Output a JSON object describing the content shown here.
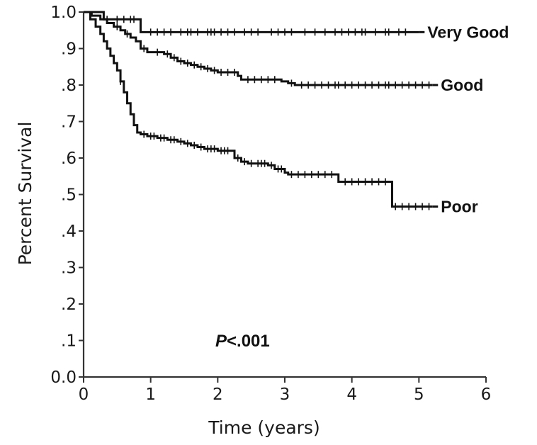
{
  "chart_data": {
    "type": "line",
    "title": "",
    "xlabel": "Time (years)",
    "ylabel": "Percent Survival",
    "xlim": [
      0,
      6
    ],
    "ylim": [
      0,
      1
    ],
    "x_ticks": [
      {
        "value": 0,
        "label": "0"
      },
      {
        "value": 1,
        "label": "1"
      },
      {
        "value": 2,
        "label": "2"
      },
      {
        "value": 3,
        "label": "3"
      },
      {
        "value": 4,
        "label": "4"
      },
      {
        "value": 5,
        "label": "5"
      },
      {
        "value": 6,
        "label": "6"
      }
    ],
    "y_ticks": [
      {
        "value": 0.0,
        "label": "0.0"
      },
      {
        "value": 0.1,
        "label": ".1"
      },
      {
        "value": 0.2,
        "label": ".2"
      },
      {
        "value": 0.3,
        "label": ".3"
      },
      {
        "value": 0.4,
        "label": ".4"
      },
      {
        "value": 0.5,
        "label": ".5"
      },
      {
        "value": 0.6,
        "label": ".6"
      },
      {
        "value": 0.7,
        "label": ".7"
      },
      {
        "value": 0.8,
        "label": ".8"
      },
      {
        "value": 0.9,
        "label": ".9"
      },
      {
        "value": 1.0,
        "label": "1.0"
      }
    ],
    "grid": false,
    "line_color": "#111111",
    "annotation": {
      "italic": "P",
      "text": "<.001"
    },
    "series": [
      {
        "name": "Very Good",
        "steps": [
          [
            0,
            1.0
          ],
          [
            0.3,
            0.98
          ],
          [
            0.85,
            0.945
          ],
          [
            5.0,
            0.945
          ]
        ],
        "censor_times": [
          0.35,
          0.5,
          0.6,
          0.7,
          0.75,
          1.0,
          1.1,
          1.2,
          1.3,
          1.45,
          1.55,
          1.6,
          1.7,
          1.85,
          1.9,
          1.95,
          2.05,
          2.15,
          2.25,
          2.4,
          2.5,
          2.6,
          2.8,
          2.9,
          3.0,
          3.1,
          3.3,
          3.45,
          3.6,
          3.75,
          3.85,
          3.95,
          4.05,
          4.15,
          4.2,
          4.35,
          4.5,
          4.55,
          4.7,
          4.8
        ]
      },
      {
        "name": "Good",
        "steps": [
          [
            0,
            1.0
          ],
          [
            0.12,
            0.99
          ],
          [
            0.25,
            0.98
          ],
          [
            0.35,
            0.97
          ],
          [
            0.45,
            0.96
          ],
          [
            0.55,
            0.95
          ],
          [
            0.62,
            0.94
          ],
          [
            0.7,
            0.93
          ],
          [
            0.78,
            0.92
          ],
          [
            0.85,
            0.9
          ],
          [
            0.95,
            0.89
          ],
          [
            1.2,
            0.885
          ],
          [
            1.3,
            0.875
          ],
          [
            1.4,
            0.865
          ],
          [
            1.5,
            0.86
          ],
          [
            1.6,
            0.855
          ],
          [
            1.7,
            0.85
          ],
          [
            1.8,
            0.845
          ],
          [
            1.9,
            0.84
          ],
          [
            2.0,
            0.835
          ],
          [
            2.3,
            0.825
          ],
          [
            2.35,
            0.815
          ],
          [
            2.95,
            0.81
          ],
          [
            3.05,
            0.805
          ],
          [
            3.15,
            0.8
          ],
          [
            5.2,
            0.8
          ]
        ],
        "censor_times": [
          0.5,
          0.65,
          0.9,
          1.1,
          1.25,
          1.35,
          1.45,
          1.55,
          1.65,
          1.75,
          1.85,
          1.95,
          2.05,
          2.15,
          2.25,
          2.45,
          2.55,
          2.65,
          2.75,
          2.85,
          3.1,
          3.25,
          3.35,
          3.45,
          3.55,
          3.65,
          3.75,
          3.8,
          3.9,
          4.0,
          4.1,
          4.2,
          4.3,
          4.4,
          4.5,
          4.55,
          4.65,
          4.75,
          4.85,
          4.95,
          5.05,
          5.15
        ]
      },
      {
        "name": "Poor",
        "steps": [
          [
            0,
            1.0
          ],
          [
            0.1,
            0.98
          ],
          [
            0.18,
            0.96
          ],
          [
            0.25,
            0.94
          ],
          [
            0.3,
            0.92
          ],
          [
            0.35,
            0.9
          ],
          [
            0.4,
            0.88
          ],
          [
            0.45,
            0.86
          ],
          [
            0.5,
            0.84
          ],
          [
            0.55,
            0.81
          ],
          [
            0.6,
            0.78
          ],
          [
            0.65,
            0.75
          ],
          [
            0.7,
            0.72
          ],
          [
            0.75,
            0.69
          ],
          [
            0.8,
            0.67
          ],
          [
            0.85,
            0.665
          ],
          [
            0.95,
            0.66
          ],
          [
            1.1,
            0.655
          ],
          [
            1.25,
            0.65
          ],
          [
            1.4,
            0.645
          ],
          [
            1.5,
            0.64
          ],
          [
            1.6,
            0.635
          ],
          [
            1.7,
            0.63
          ],
          [
            1.8,
            0.625
          ],
          [
            2.0,
            0.62
          ],
          [
            2.25,
            0.6
          ],
          [
            2.35,
            0.59
          ],
          [
            2.45,
            0.585
          ],
          [
            2.75,
            0.58
          ],
          [
            2.85,
            0.57
          ],
          [
            3.0,
            0.56
          ],
          [
            3.05,
            0.555
          ],
          [
            3.8,
            0.535
          ],
          [
            4.6,
            0.467
          ],
          [
            5.2,
            0.467
          ]
        ],
        "censor_times": [
          0.55,
          0.9,
          1.0,
          1.05,
          1.15,
          1.2,
          1.3,
          1.35,
          1.45,
          1.55,
          1.65,
          1.75,
          1.85,
          1.9,
          1.95,
          2.05,
          2.1,
          2.15,
          2.3,
          2.4,
          2.5,
          2.6,
          2.65,
          2.7,
          2.8,
          2.9,
          2.95,
          3.1,
          3.2,
          3.3,
          3.4,
          3.5,
          3.6,
          3.7,
          3.9,
          4.0,
          4.1,
          4.2,
          4.3,
          4.4,
          4.5,
          4.65,
          4.75,
          4.85,
          4.95,
          5.05,
          5.15
        ]
      }
    ]
  }
}
